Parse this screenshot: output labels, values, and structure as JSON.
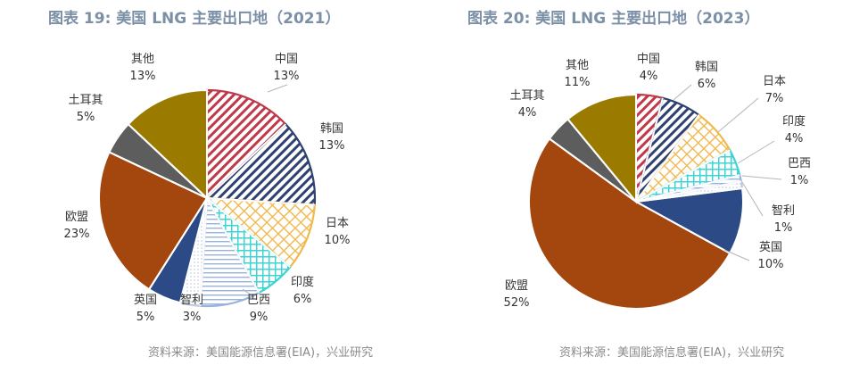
{
  "chart_data": [
    {
      "type": "pie",
      "title": "图表 19: 美国 LNG 主要出口地（2021）",
      "source": "资料来源：美国能源信息署(EIA)，兴业研究",
      "slices": [
        {
          "name": "中国",
          "value": 13,
          "label": "13%",
          "color": "#c0394b",
          "pattern": "diag"
        },
        {
          "name": "韩国",
          "value": 13,
          "label": "13%",
          "color": "#2e4170",
          "pattern": "diag"
        },
        {
          "name": "日本",
          "value": 10,
          "label": "10%",
          "color": "#f0b94e",
          "pattern": "cross"
        },
        {
          "name": "印度",
          "value": 6,
          "label": "6%",
          "color": "#3fd4d4",
          "pattern": "grid"
        },
        {
          "name": "巴西",
          "value": 9,
          "label": "9%",
          "color": "#9ab3d9",
          "pattern": "hlines"
        },
        {
          "name": "智利",
          "value": 3,
          "label": "3%",
          "color": "#bcc8de",
          "pattern": "dots"
        },
        {
          "name": "英国",
          "value": 5,
          "label": "5%",
          "color": "#2b4a86",
          "pattern": "solid"
        },
        {
          "name": "欧盟",
          "value": 23,
          "label": "23%",
          "color": "#a3470f",
          "pattern": "solid"
        },
        {
          "name": "土耳其",
          "value": 5,
          "label": "5%",
          "color": "#5d5d5d",
          "pattern": "solid"
        },
        {
          "name": "其他",
          "value": 13,
          "label": "13%",
          "color": "#9b7a00",
          "pattern": "solid"
        }
      ]
    },
    {
      "type": "pie",
      "title": "图表 20: 美国 LNG 主要出口地（2023）",
      "source": "资料来源：美国能源信息署(EIA)，兴业研究",
      "slices": [
        {
          "name": "中国",
          "value": 4,
          "label": "4%",
          "color": "#c0394b",
          "pattern": "diag"
        },
        {
          "name": "韩国",
          "value": 6,
          "label": "6%",
          "color": "#2e4170",
          "pattern": "diag"
        },
        {
          "name": "日本",
          "value": 7,
          "label": "7%",
          "color": "#f0b94e",
          "pattern": "cross"
        },
        {
          "name": "印度",
          "value": 4,
          "label": "4%",
          "color": "#3fd4d4",
          "pattern": "grid"
        },
        {
          "name": "巴西",
          "value": 1,
          "label": "1%",
          "color": "#9ab3d9",
          "pattern": "hlines"
        },
        {
          "name": "智利",
          "value": 1,
          "label": "1%",
          "color": "#bcc8de",
          "pattern": "dots"
        },
        {
          "name": "英国",
          "value": 10,
          "label": "10%",
          "color": "#2b4a86",
          "pattern": "solid"
        },
        {
          "name": "欧盟",
          "value": 52,
          "label": "52%",
          "color": "#a3470f",
          "pattern": "solid"
        },
        {
          "name": "土耳其",
          "value": 4,
          "label": "4%",
          "color": "#5d5d5d",
          "pattern": "solid"
        },
        {
          "name": "其他",
          "value": 11,
          "label": "11%",
          "color": "#9b7a00",
          "pattern": "solid"
        }
      ]
    }
  ]
}
